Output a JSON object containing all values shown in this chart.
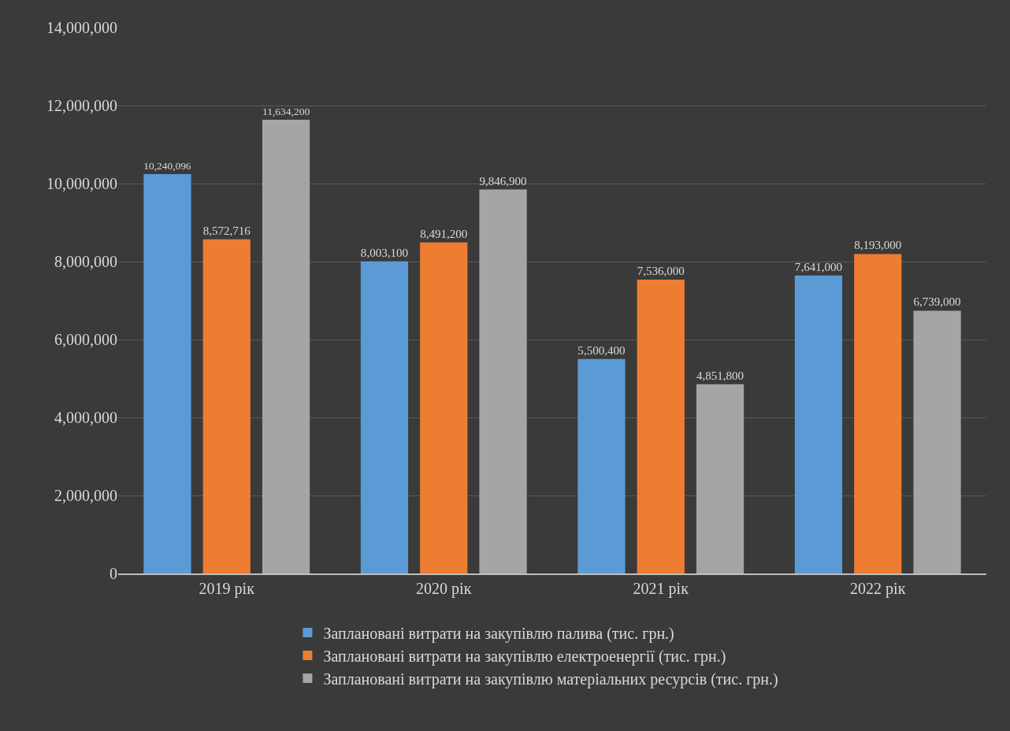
{
  "chart_data": {
    "type": "bar",
    "categories": [
      "2019 рік",
      "2020 рік",
      "2021 рік",
      "2022 рік"
    ],
    "series": [
      {
        "name": "Заплановані витрати на закупівлю палива (тис. грн.)",
        "color": "#5b9bd5",
        "values": [
          10240096,
          8003100,
          5500400,
          7641000
        ],
        "value_labels": [
          "10,240,096",
          "8,003,100",
          "5,500,400",
          "7,641,000"
        ]
      },
      {
        "name": "Заплановані витрати на закупівлю електроенергії (тис. грн.)",
        "color": "#ed7d31",
        "values": [
          8572716,
          8491200,
          7536000,
          8193000
        ],
        "value_labels": [
          "8,572,716",
          "8,491,200",
          "7,536,000",
          "8,193,000"
        ]
      },
      {
        "name": "Заплановані витрати на закупівлю матеріальних ресурсів (тис. грн.)",
        "color": "#a5a5a5",
        "values": [
          11634200,
          9846900,
          4851800,
          6739000
        ],
        "value_labels": [
          "11,634,200",
          "9,846,900",
          "4,851,800",
          "6,739,000"
        ]
      }
    ],
    "ylim": [
      0,
      14000000
    ],
    "yticks": [
      {
        "value": 0,
        "label": "0"
      },
      {
        "value": 2000000,
        "label": "2,000,000"
      },
      {
        "value": 4000000,
        "label": "4,000,000"
      },
      {
        "value": 6000000,
        "label": "6,000,000"
      },
      {
        "value": 8000000,
        "label": "8,000,000"
      },
      {
        "value": 10000000,
        "label": "10,000,000"
      },
      {
        "value": 12000000,
        "label": "12,000,000"
      },
      {
        "value": 14000000,
        "label": "14,000,000"
      }
    ],
    "grid": "y",
    "legend": "bottom"
  }
}
